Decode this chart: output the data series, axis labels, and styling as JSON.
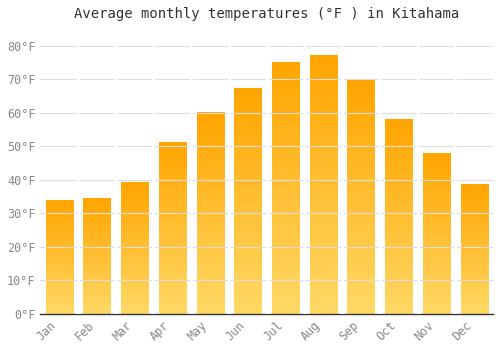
{
  "title": "Average monthly temperatures (°F ) in Kitahama",
  "months": [
    "Jan",
    "Feb",
    "Mar",
    "Apr",
    "May",
    "Jun",
    "Jul",
    "Aug",
    "Sep",
    "Oct",
    "Nov",
    "Dec"
  ],
  "values": [
    33.8,
    34.5,
    39.2,
    51.1,
    60.1,
    67.3,
    75.2,
    77.0,
    69.8,
    57.9,
    47.8,
    38.5
  ],
  "bar_color_top": "#FFA500",
  "bar_color_bottom": "#FFD966",
  "background_color": "#FFFFFF",
  "grid_color": "#DDDDDD",
  "text_color": "#888888",
  "ylim": [
    0,
    85
  ],
  "yticks": [
    0,
    10,
    20,
    30,
    40,
    50,
    60,
    70,
    80
  ],
  "title_fontsize": 10,
  "tick_fontsize": 8.5
}
